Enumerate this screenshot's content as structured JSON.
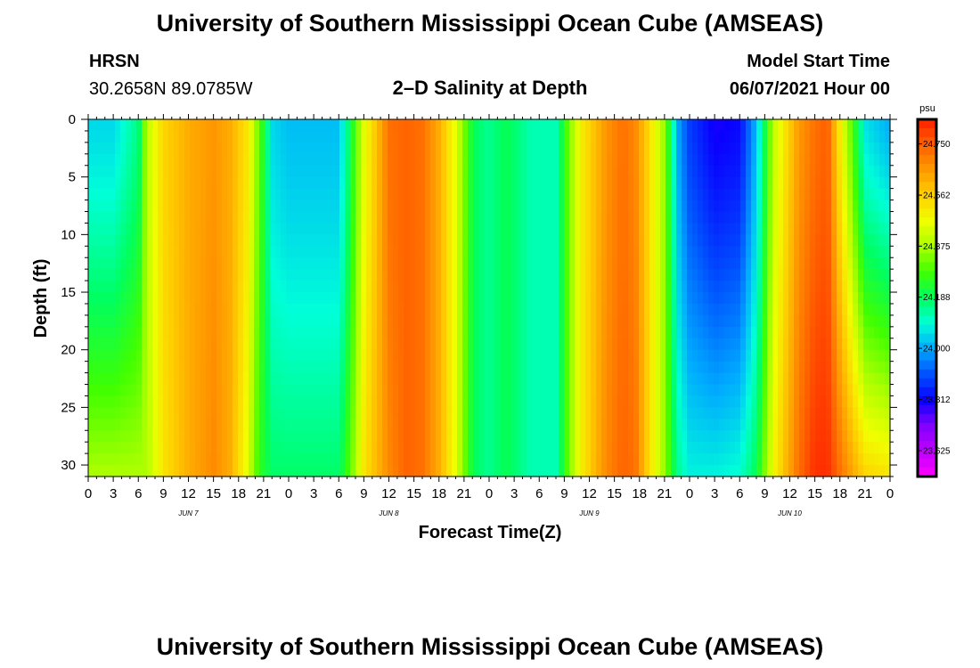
{
  "header": {
    "title": "University of Southern Mississippi Ocean Cube (AMSEAS)",
    "footer_title": "University of Southern Mississippi Ocean Cube (AMSEAS)",
    "station": "HRSN",
    "coords": "30.2658N  89.0785W",
    "plot_title": "2–D Salinity at Depth",
    "model_start_label": "Model Start Time",
    "model_start_value": "06/07/2021 Hour 00"
  },
  "chart_data": {
    "type": "heatmap",
    "xlabel": "Forecast Time(Z)",
    "ylabel": "Depth (ft)",
    "y_ticks": [
      "0",
      "5",
      "10",
      "15",
      "20",
      "25",
      "30"
    ],
    "y_range": [
      0,
      31
    ],
    "y_inverted": true,
    "x_range_hours": [
      0,
      96
    ],
    "x_ticks": [
      "0",
      "3",
      "6",
      "9",
      "12",
      "15",
      "18",
      "21",
      "0",
      "3",
      "6",
      "9",
      "12",
      "15",
      "18",
      "21",
      "0",
      "3",
      "6",
      "9",
      "12",
      "15",
      "18",
      "21",
      "0",
      "3",
      "6",
      "9",
      "12",
      "15",
      "18",
      "21",
      "0"
    ],
    "day_labels": [
      "JUN 7",
      "JUN 8",
      "JUN 9",
      "JUN 10"
    ],
    "colorbar": {
      "unit": "psu",
      "ticks": [
        "24.750",
        "24.562",
        "24.375",
        "24.188",
        "24.000",
        "23.812",
        "23.625"
      ],
      "range": [
        23.53,
        24.84
      ],
      "colors": [
        "#ff00ff",
        "#bf00ff",
        "#8000ff",
        "#0a00ff",
        "#0050ff",
        "#00aaff",
        "#00ffd8",
        "#00ff60",
        "#40ff00",
        "#a8ff00",
        "#f0ff00",
        "#ffd000",
        "#ff9a00",
        "#ff6000",
        "#ff2000"
      ]
    },
    "hours": [
      0,
      3,
      6,
      7,
      9,
      12,
      15,
      17,
      19,
      20.5,
      22,
      24,
      27,
      30,
      31.5,
      33,
      36,
      38,
      40,
      42,
      44,
      46,
      47.5,
      48,
      50,
      53,
      56,
      57.5,
      59,
      62,
      64,
      65.5,
      67,
      69,
      70.5,
      72,
      75,
      78,
      80,
      82,
      85,
      87,
      88.5,
      90,
      93,
      96
    ],
    "salinity_surface": [
      24.05,
      24.05,
      24.16,
      24.4,
      24.55,
      24.62,
      24.66,
      24.62,
      24.52,
      24.3,
      24.05,
      24.02,
      24.02,
      24.02,
      24.22,
      24.45,
      24.72,
      24.74,
      24.72,
      24.62,
      24.45,
      24.2,
      24.15,
      24.15,
      24.2,
      24.12,
      24.12,
      24.32,
      24.5,
      24.66,
      24.72,
      24.68,
      24.55,
      24.35,
      24.0,
      23.88,
      23.8,
      23.82,
      24.02,
      24.4,
      24.65,
      24.72,
      24.75,
      24.5,
      24.06,
      24.0
    ],
    "salinity_bottom": [
      24.38,
      24.38,
      24.38,
      24.38,
      24.52,
      24.62,
      24.68,
      24.62,
      24.45,
      24.25,
      24.18,
      24.18,
      24.18,
      24.18,
      24.32,
      24.52,
      24.68,
      24.74,
      24.72,
      24.62,
      24.45,
      24.2,
      24.15,
      24.15,
      24.2,
      24.12,
      24.12,
      24.32,
      24.5,
      24.68,
      24.74,
      24.72,
      24.55,
      24.35,
      24.15,
      24.08,
      24.08,
      24.1,
      24.2,
      24.48,
      24.72,
      24.82,
      24.82,
      24.72,
      24.55,
      24.52
    ]
  }
}
